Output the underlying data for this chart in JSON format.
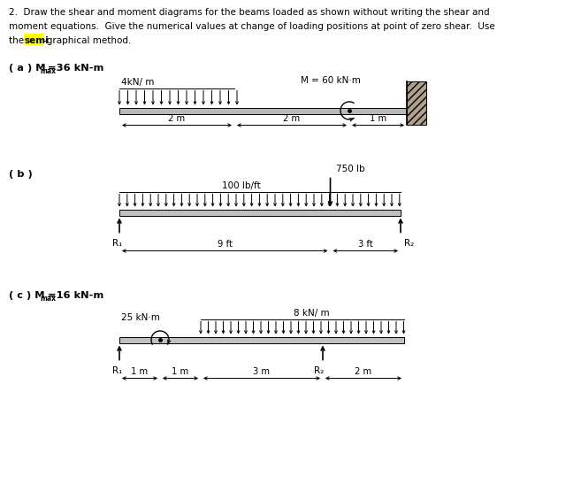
{
  "bg_color": "#ffffff",
  "beam_color_a": "#b0b0b0",
  "beam_color_bc": "#c8c8c8",
  "title_line1": "2.  Draw the shear and moment diagrams for the beams loaded as shown without writing the shear and",
  "title_line2": "moment equations.  Give the numerical values at change of loading positions at point of zero shear.  Use",
  "title_line3_pre": "the ",
  "title_line3_semi": "semi",
  "title_line3_post": "-graphical method.",
  "part_a": "( a ) M",
  "part_a_sub": "max",
  "part_a_post": "=36 kN-m",
  "part_b": "( b )",
  "part_c": "( c ) M",
  "part_c_sub": "max",
  "part_c_post": "=16 kN-m",
  "label_4kn": "4kN/ m",
  "label_M60": "M = 60 kN·m",
  "label_750": "750 lb",
  "label_100": "100 lb/ft",
  "label_25": "25 kN·m",
  "label_8kn": "8 kN/ m",
  "label_R1": "R₁",
  "label_R2": "R₂",
  "dim_2m_a1": "2 m",
  "dim_2m_a2": "2 m",
  "dim_1m_a": "1 m",
  "dim_9ft": "9 ft",
  "dim_3ft": "3 ft",
  "dim_1m_c1": "1 m",
  "dim_1m_c2": "1 m",
  "dim_3m_c": "3 m",
  "dim_2m_c": "2 m"
}
